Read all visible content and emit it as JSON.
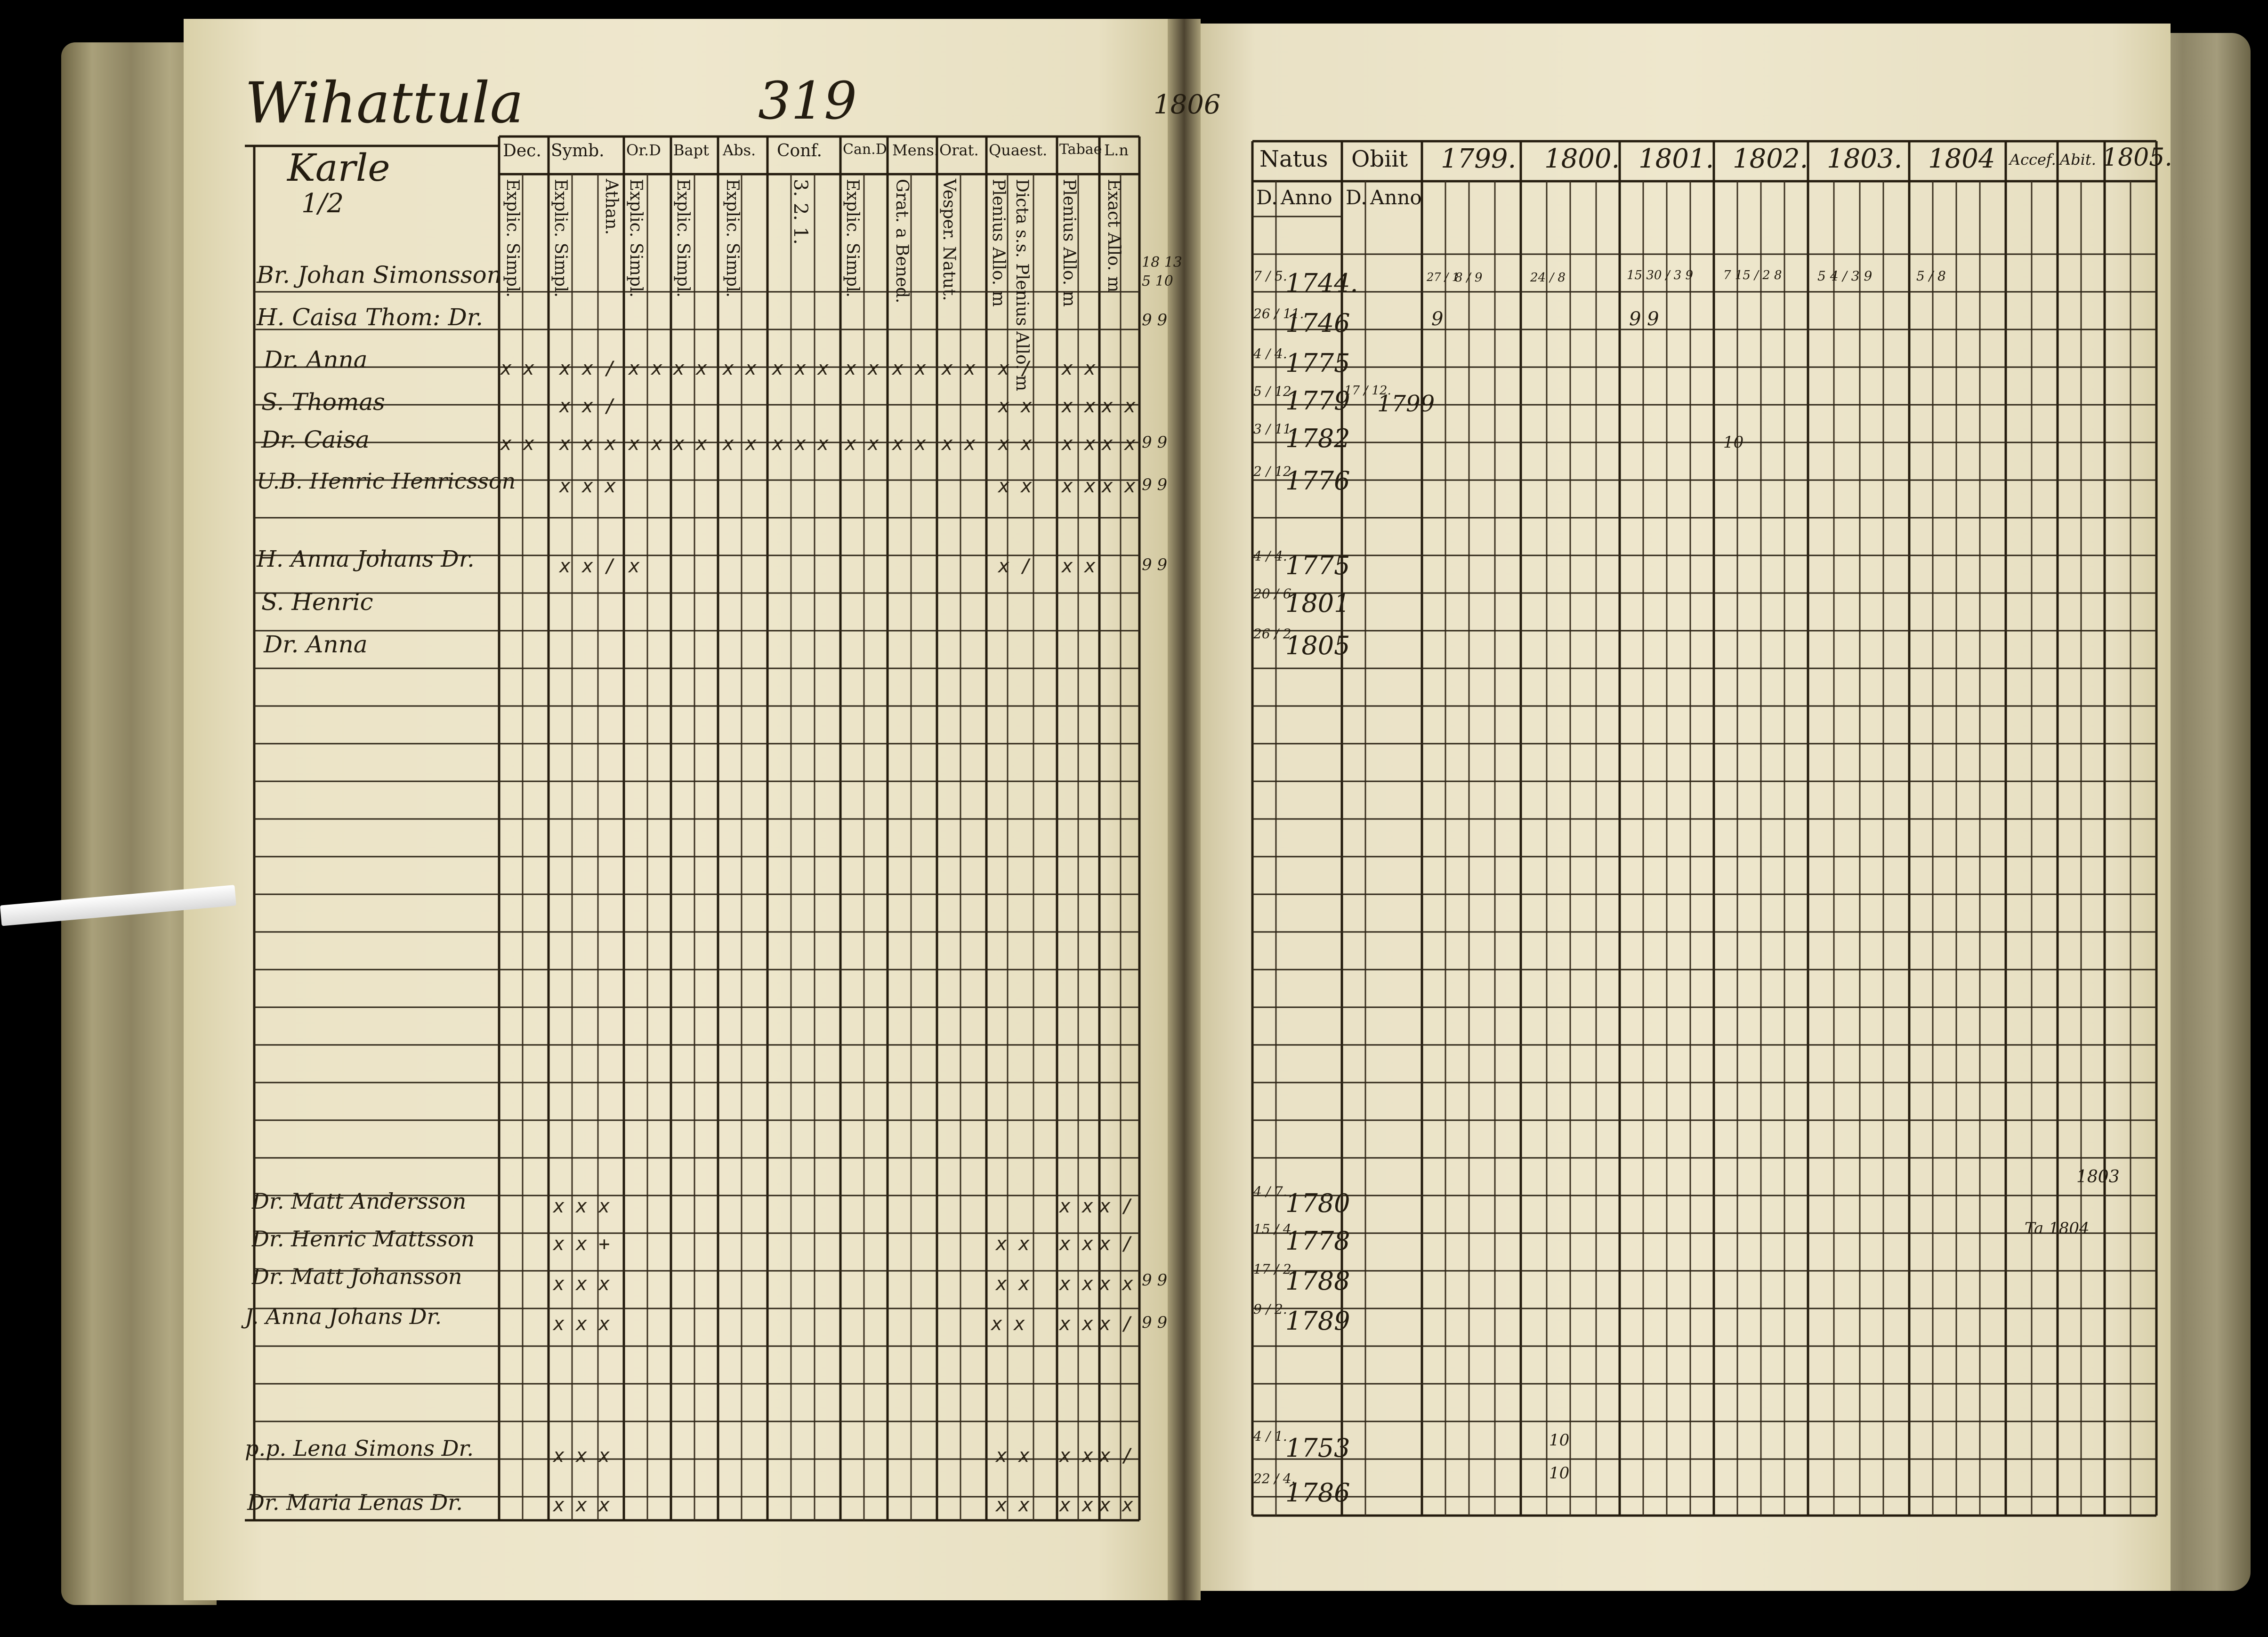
{
  "left_page": {
    "place": "Wihattula",
    "page_number": "319",
    "farm": "Karle",
    "farm_fraction": "1/2",
    "headers": [
      "Dec.",
      "Symb.",
      "Or.D",
      "Bapt",
      "Abs.",
      "Conf.",
      "Can.D",
      "Mens.",
      "Orat.",
      "Quaest.",
      "Tabae",
      "L.n"
    ],
    "subheaders": [
      "Explic. Simpl.",
      "Explic. Simpl.",
      "Athan.",
      "Explic. Simpl.",
      "Explic. Simpl.",
      "Explic. Simpl.",
      "3. 2. 1.",
      "Explic. Simpl.",
      "Grat. a Bened.",
      "Vesper. Natut.",
      "Plenius Allo. m",
      "Dicta s.s. Plenius Allo. m",
      "Plenius Allo. m",
      "Exact Allo. m"
    ],
    "persons": [
      {
        "name": "Br. Johan Simonsson",
        "marks": [
          "",
          "",
          "",
          "",
          "",
          "",
          "",
          "",
          "",
          "",
          "",
          ""
        ]
      },
      {
        "name": "H. Caisa Thom: Dr.",
        "marks": [
          "",
          "",
          "",
          "",
          "",
          "",
          "",
          "",
          "",
          "",
          "",
          ""
        ]
      },
      {
        "name": "Dr. Anna",
        "marks": [
          "x x",
          "x x /",
          "x x",
          "x x",
          "x x",
          "x x x",
          "x x",
          "x x",
          "x x",
          "x /",
          "x x",
          ""
        ]
      },
      {
        "name": "S. Thomas",
        "marks": [
          "",
          "x x /",
          "",
          "",
          "",
          "",
          "",
          "",
          "",
          "x x",
          "x x",
          "x x"
        ]
      },
      {
        "name": "Dr. Caisa",
        "marks": [
          "x x",
          "x x x",
          "x x",
          "x x",
          "x x",
          "x x x",
          "x x",
          "x x",
          "x x",
          "x x",
          "x x",
          "x x"
        ]
      },
      {
        "name": "U.B. Henric Henricsson",
        "marks": [
          "",
          "x x x",
          "",
          "",
          "",
          "",
          "",
          "",
          "",
          "x x",
          "x x",
          "x x"
        ]
      },
      {
        "name": "H. Anna Johans Dr.",
        "marks": [
          "",
          "x x /",
          "x",
          "",
          "",
          "",
          "",
          "",
          "",
          "x /",
          "x x",
          ""
        ]
      },
      {
        "name": "S. Henric",
        "marks": [
          "",
          "",
          "",
          "",
          "",
          "",
          "",
          "",
          "",
          "",
          "",
          ""
        ]
      },
      {
        "name": "Dr. Anna",
        "marks": [
          "",
          "",
          "",
          "",
          "",
          "",
          "",
          "",
          "",
          "",
          "",
          ""
        ]
      },
      {
        "name": "Dr. Matt Andersson",
        "marks": [
          "",
          "x x x",
          "",
          "",
          "",
          "",
          "",
          "",
          "",
          "",
          "x x",
          "x /"
        ]
      },
      {
        "name": "Dr. Henric Mattsson",
        "marks": [
          "",
          "x x +",
          "",
          "",
          "",
          "",
          "",
          "",
          "",
          "x x",
          "x x",
          "x /"
        ]
      },
      {
        "name": "Dr. Matt Johansson",
        "marks": [
          "",
          "x x x",
          "",
          "",
          "",
          "",
          "",
          "",
          "",
          "x x",
          "x x",
          "x x"
        ]
      },
      {
        "name": "J. Anna Johans Dr.",
        "marks": [
          "",
          "x x x",
          "",
          "",
          "",
          "",
          "",
          "",
          "",
          "x x",
          "x x",
          "x /"
        ]
      },
      {
        "name": "p.p. Lena Simons Dr.",
        "marks": [
          "",
          "x x x",
          "",
          "",
          "",
          "",
          "",
          "",
          "",
          "x x",
          "x x",
          "x /"
        ]
      },
      {
        "name": "Dr. Maria Lenas Dr.",
        "marks": [
          "",
          "x x x",
          "",
          "",
          "",
          "",
          "",
          "",
          "",
          "x x",
          "x x",
          "x x"
        ]
      }
    ],
    "margin_notes": [
      "18 13",
      "5 10",
      "9 9",
      "9 9",
      "9 9",
      "9 9",
      "9 9",
      "9 9",
      "9 9"
    ]
  },
  "right_page": {
    "year_heading": "1806",
    "headers": [
      "Natus",
      "Obiit",
      "1799.",
      "1800.",
      "1801.",
      "1802.",
      "1803.",
      "1804",
      "Accef.",
      "Abit.",
      "1805."
    ],
    "sub_headers": [
      "D.",
      "Anno",
      "D.",
      "Anno"
    ],
    "rows": [
      {
        "day": "7 / 5.",
        "year": "1744.",
        "obiit_day": "",
        "obiit_year": ""
      },
      {
        "day": "26 / 11.",
        "year": "1746",
        "obiit_day": "",
        "obiit_year": ""
      },
      {
        "day": "4 / 4.",
        "year": "1775",
        "obiit_day": "",
        "obiit_year": ""
      },
      {
        "day": "5 / 12.",
        "year": "1779",
        "obiit_day": "17 / 12.",
        "obiit_year": "1799"
      },
      {
        "day": "3 / 11.",
        "year": "1782",
        "obiit_day": "",
        "obiit_year": ""
      },
      {
        "day": "2 / 12.",
        "year": "1776",
        "obiit_day": "",
        "obiit_year": ""
      },
      {
        "day": "4 / 4.",
        "year": "1775",
        "obiit_day": "",
        "obiit_year": ""
      },
      {
        "day": "20 / 6.",
        "year": "1801",
        "obiit_day": "",
        "obiit_year": ""
      },
      {
        "day": "26 / 2.",
        "year": "1805",
        "obiit_day": "",
        "obiit_year": ""
      },
      {
        "day": "4 / 7.",
        "year": "1780",
        "obiit_day": "",
        "obiit_year": ""
      },
      {
        "day": "15 / 4.",
        "year": "1778",
        "obiit_day": "",
        "obiit_year": ""
      },
      {
        "day": "17 / 2.",
        "year": "1788",
        "obiit_day": "",
        "obiit_year": ""
      },
      {
        "day": "9 / 2.",
        "year": "1789",
        "obiit_day": "",
        "obiit_year": ""
      },
      {
        "day": "4 / 1.",
        "year": "1753",
        "obiit_day": "",
        "obiit_year": ""
      },
      {
        "day": "22 / 4.",
        "year": "1786",
        "obiit_day": "",
        "obiit_year": ""
      }
    ],
    "accession_notes": [
      "1803",
      "Ta 1804"
    ],
    "year_marks": [
      "27 / 1",
      "8 / 9",
      "24 / 8",
      "15 30 / 3 9",
      "7 15 / 2 8",
      "5 4 / 3 9",
      "5 / 8",
      "10",
      "9",
      "9 9",
      "10",
      "10"
    ]
  },
  "colors": {
    "paper": "#ede6cc",
    "ink": "#1e1810",
    "background": "#000000"
  }
}
